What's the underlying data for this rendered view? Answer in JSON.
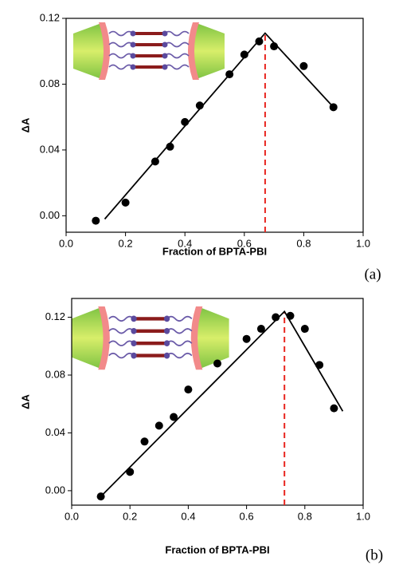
{
  "chart_data": [
    {
      "type": "scatter",
      "label": "(a)",
      "xlabel": "Fraction of BPTA-PBI",
      "ylabel": "ΔA",
      "x": [
        0.1,
        0.2,
        0.3,
        0.35,
        0.4,
        0.45,
        0.55,
        0.6,
        0.65,
        0.7,
        0.8,
        0.9
      ],
      "values": [
        -0.003,
        0.008,
        0.033,
        0.042,
        0.057,
        0.067,
        0.086,
        0.098,
        0.106,
        0.103,
        0.091,
        0.066
      ],
      "color": "#000000",
      "fit": {
        "x": [
          0.13,
          0.67,
          0.9
        ],
        "y": [
          -0.002,
          0.111,
          0.066
        ],
        "color": "#000000"
      },
      "vline": {
        "x": 0.67,
        "color": "#e8251f"
      },
      "xlim": [
        0,
        1
      ],
      "ylim": [
        -0.01,
        0.12
      ],
      "xticks": [
        {
          "value": 0,
          "label": "0.0"
        },
        0.2,
        0.4,
        0.6,
        0.8,
        {
          "value": 1,
          "label": "1.0"
        }
      ],
      "yticks": [
        {
          "value": 0,
          "label": "0.00"
        },
        0.04,
        0.08,
        0.12
      ]
    },
    {
      "type": "scatter",
      "label": "(b)",
      "xlabel": "Fraction of BPTA-PBI",
      "ylabel": "ΔA",
      "x": [
        0.1,
        0.2,
        0.25,
        0.3,
        0.35,
        0.4,
        0.5,
        0.6,
        0.65,
        0.7,
        0.75,
        0.8,
        0.85,
        0.9
      ],
      "values": [
        -0.004,
        0.013,
        0.034,
        0.045,
        0.051,
        0.07,
        0.088,
        0.105,
        0.112,
        0.12,
        0.121,
        0.112,
        0.087,
        0.057
      ],
      "color": "#000000",
      "fit": {
        "x": [
          0.1,
          0.73,
          0.93
        ],
        "y": [
          -0.004,
          0.124,
          0.055
        ],
        "color": "#000000"
      },
      "vline": {
        "x": 0.73,
        "color": "#e8251f"
      },
      "xlim": [
        0,
        1
      ],
      "ylim": [
        -0.01,
        0.133
      ],
      "xticks": [
        {
          "value": 0,
          "label": "0.0"
        },
        0.2,
        0.4,
        0.6,
        0.8,
        {
          "value": 1,
          "label": "1.0"
        }
      ],
      "yticks": [
        {
          "value": 0,
          "label": "0.00"
        },
        0.04,
        0.08,
        0.12
      ]
    }
  ]
}
